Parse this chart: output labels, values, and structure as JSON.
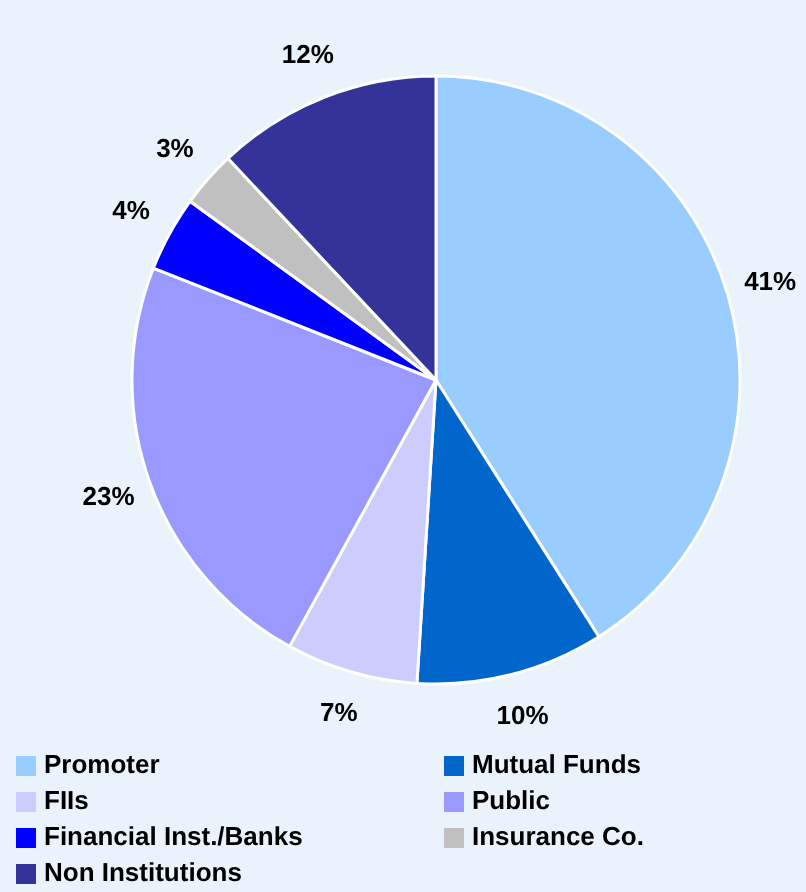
{
  "chart_data": {
    "type": "pie",
    "categories": [
      "Promoter",
      "Mutual Funds",
      "FIIs",
      "Public",
      "Financial Inst./Banks",
      "Insurance Co.",
      "Non Institutions"
    ],
    "values": [
      41,
      10,
      7,
      23,
      4,
      3,
      12
    ],
    "colors": [
      "#99ccff",
      "#0066cc",
      "#ccccff",
      "#9999ff",
      "#0000ff",
      "#c0c0c0",
      "#333399"
    ],
    "value_labels": [
      "41%",
      "10%",
      "7%",
      "23%",
      "4%",
      "3%",
      "12%"
    ],
    "legend": "bottom"
  }
}
